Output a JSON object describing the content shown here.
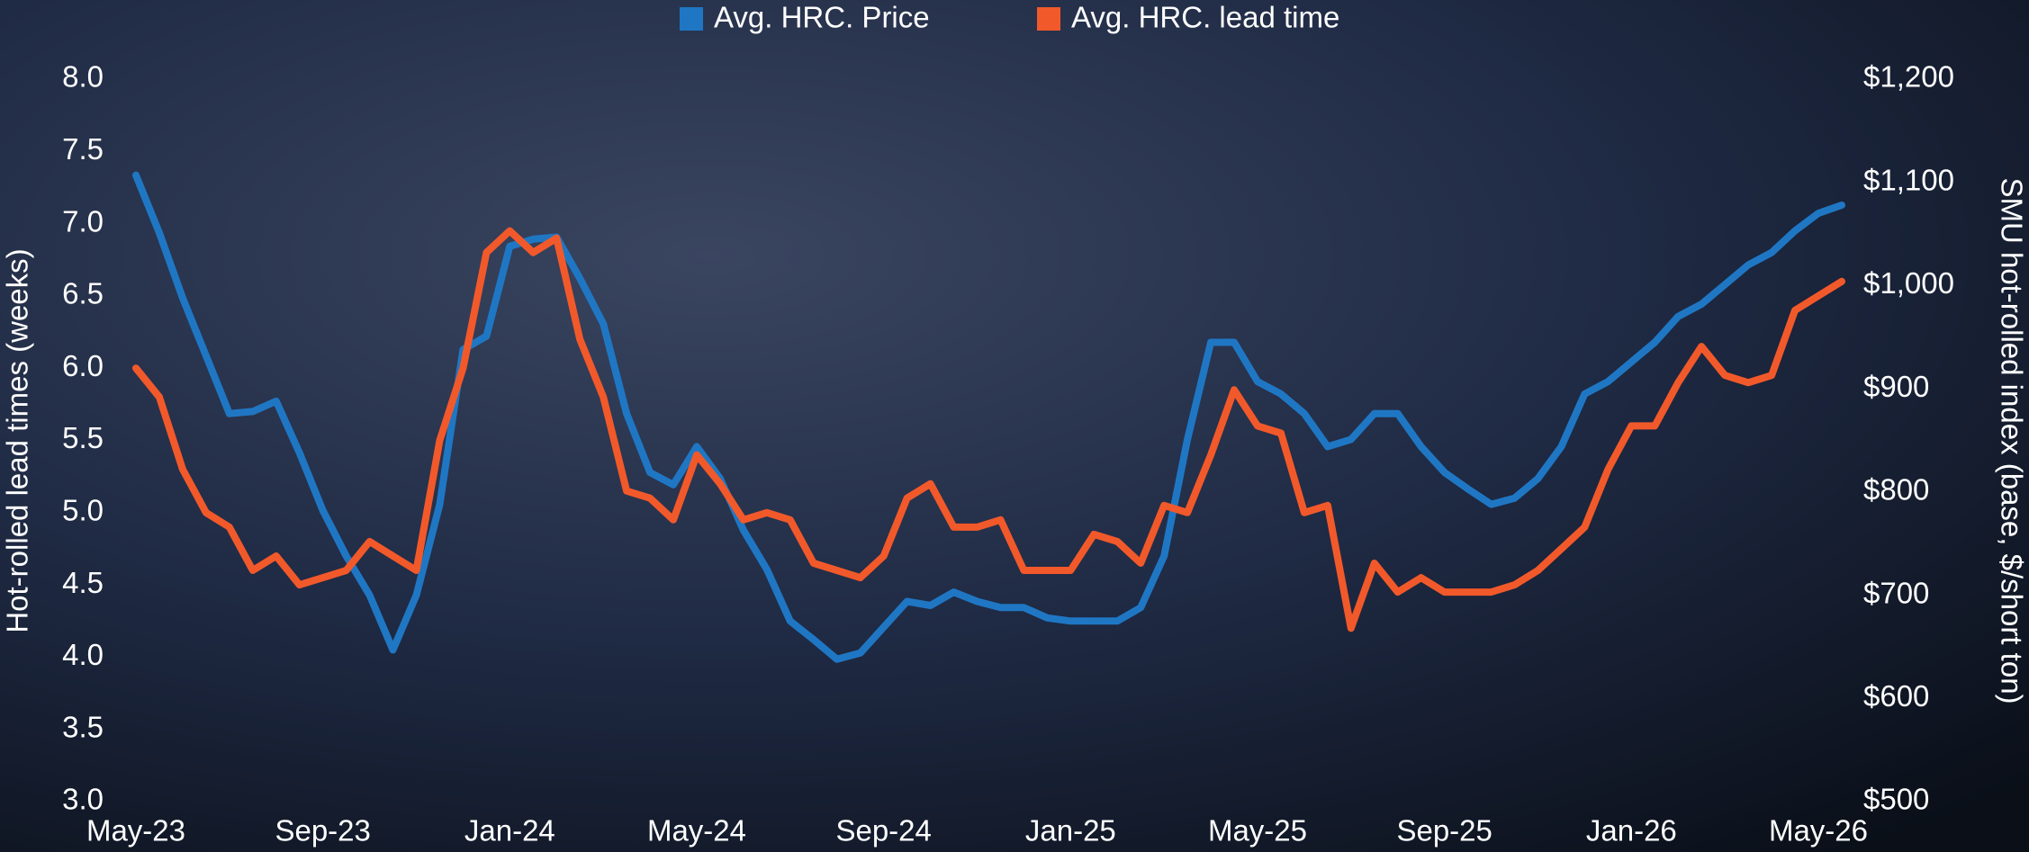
{
  "chart_data": {
    "type": "line",
    "xlim": [
      0,
      36.5
    ],
    "xticks": [
      {
        "value": 0,
        "label": "May-23"
      },
      {
        "value": 4,
        "label": "Sep-23"
      },
      {
        "value": 8,
        "label": "Jan-24"
      },
      {
        "value": 12,
        "label": "May-24"
      },
      {
        "value": 16,
        "label": "Sep-24"
      },
      {
        "value": 20,
        "label": "Jan-25"
      },
      {
        "value": 24,
        "label": "May-25"
      },
      {
        "value": 28,
        "label": "Sep-25"
      },
      {
        "value": 32,
        "label": "Jan-26"
      },
      {
        "value": 36,
        "label": "May-26"
      }
    ],
    "ylabel": "Hot-rolled lead times (weeks)",
    "y2label": "SMU hot-rolled index (base, $/short ton)",
    "ylim": [
      3.0,
      8.0
    ],
    "yticks": [
      {
        "value": 3,
        "label": "3.0"
      },
      3.5,
      {
        "value": 4,
        "label": "4.0"
      },
      4.5,
      {
        "value": 5,
        "label": "5.0"
      },
      5.5,
      {
        "value": 6,
        "label": "6.0"
      },
      6.5,
      {
        "value": 7,
        "label": "7.0"
      },
      7.5,
      {
        "value": 8,
        "label": "8.0"
      }
    ],
    "y2lim": [
      500,
      1200
    ],
    "y2ticks": [
      {
        "value": 500,
        "label": "$500"
      },
      {
        "value": 600,
        "label": "$600"
      },
      {
        "value": 700,
        "label": "$700"
      },
      {
        "value": 800,
        "label": "$800"
      },
      {
        "value": 900,
        "label": "$900"
      },
      {
        "value": 1000,
        "label": "$1,000"
      },
      {
        "value": 1100,
        "label": "$1,100"
      },
      {
        "value": 1200,
        "label": "$1,200"
      }
    ],
    "x": [
      0,
      0.5,
      1,
      1.5,
      2,
      2.5,
      3,
      3.5,
      4,
      4.5,
      5,
      5.5,
      6,
      6.5,
      7,
      7.5,
      8,
      8.5,
      9,
      9.5,
      10,
      10.5,
      11,
      11.5,
      12,
      12.5,
      13,
      13.5,
      14,
      14.5,
      15,
      15.5,
      16,
      16.5,
      17,
      17.5,
      18,
      18.5,
      19,
      19.5,
      20,
      20.5,
      21,
      21.5,
      22,
      22.5,
      23,
      23.5,
      24,
      24.5,
      25,
      25.5,
      26,
      26.5,
      27,
      27.5,
      28,
      28.5,
      29,
      29.5,
      30,
      30.5,
      31,
      31.5,
      32,
      32.5,
      33,
      33.5,
      34,
      34.5,
      35,
      35.5,
      36,
      36.5
    ],
    "series": [
      {
        "name": "Avg. HRC. Price",
        "color": "#1f77c4",
        "axis": "y2",
        "values": [
          1107,
          1051,
          988,
          932,
          876,
          878,
          888,
          838,
          782,
          738,
          700,
          647,
          700,
          788,
          938,
          951,
          1038,
          1045,
          1047,
          1007,
          963,
          876,
          819,
          807,
          844,
          813,
          763,
          725,
          675,
          657,
          638,
          644,
          669,
          694,
          690,
          703,
          694,
          688,
          688,
          678,
          675,
          675,
          675,
          688,
          738,
          851,
          945,
          945,
          907,
          895,
          876,
          844,
          851,
          876,
          876,
          844,
          819,
          803,
          788,
          794,
          813,
          844,
          895,
          907,
          926,
          945,
          970,
          982,
          1001,
          1020,
          1032,
          1053,
          1070,
          1078
        ]
      },
      {
        "name": "Avg. HRC. lead time",
        "color": "#f2592a",
        "values": [
          6.0,
          5.8,
          5.3,
          5.0,
          4.9,
          4.6,
          4.7,
          4.5,
          4.55,
          4.6,
          4.8,
          4.7,
          4.6,
          5.5,
          6.0,
          6.8,
          6.95,
          6.8,
          6.9,
          6.2,
          5.8,
          5.15,
          5.1,
          4.95,
          5.4,
          5.2,
          4.95,
          5.0,
          4.95,
          4.65,
          4.6,
          4.55,
          4.7,
          5.1,
          5.2,
          4.9,
          4.9,
          4.95,
          4.6,
          4.6,
          4.6,
          4.85,
          4.8,
          4.65,
          5.05,
          5.0,
          5.4,
          5.85,
          5.6,
          5.55,
          5.0,
          5.05,
          4.2,
          4.65,
          4.45,
          4.55,
          4.45,
          4.45,
          4.45,
          4.5,
          4.6,
          4.75,
          4.9,
          5.3,
          5.6,
          5.6,
          5.9,
          6.15,
          5.95,
          5.9,
          5.95,
          6.4,
          6.5,
          6.6
        ]
      }
    ]
  }
}
